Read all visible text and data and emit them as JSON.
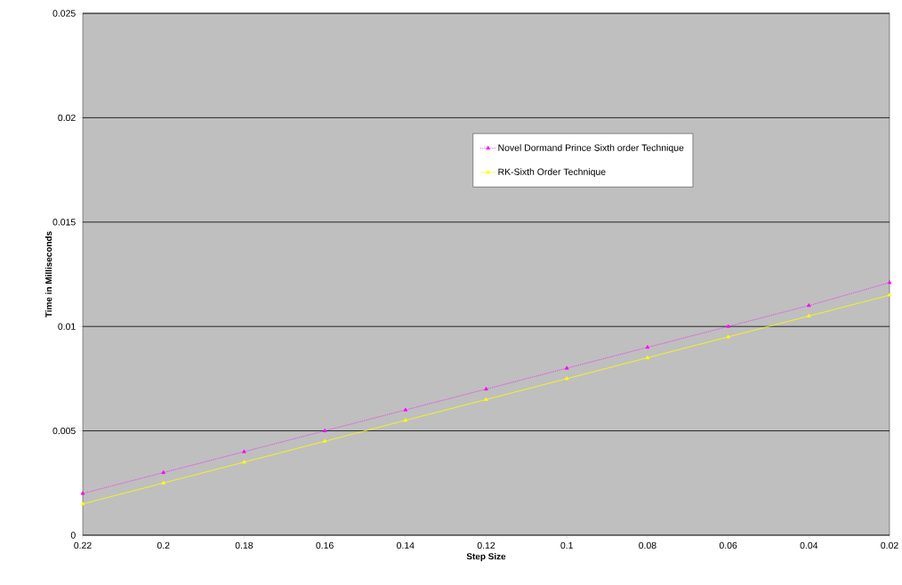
{
  "chart_data": {
    "type": "line",
    "xlabel": "Step Size",
    "ylabel": "Time in Milliseconds",
    "categories": [
      "0.22",
      "0.2",
      "0.18",
      "0.16",
      "0.14",
      "0.12",
      "0.1",
      "0.08",
      "0.06",
      "0.04",
      "0.02"
    ],
    "series": [
      {
        "name": "Novel Dormand Prince Sixth order Technique",
        "color": "#ff00ff",
        "line_style": "dotted",
        "values": [
          0.002,
          0.003,
          0.004,
          0.005,
          0.006,
          0.007,
          0.008,
          0.009,
          0.01,
          0.011,
          0.0121
        ]
      },
      {
        "name": "RK-Sixth Order Technique",
        "color": "#ffff00",
        "line_style": "solid",
        "values": [
          0.0015,
          0.0025,
          0.0035,
          0.0045,
          0.0055,
          0.0065,
          0.0075,
          0.0085,
          0.0095,
          0.0105,
          0.0115
        ]
      }
    ],
    "ylim": [
      0,
      0.025
    ],
    "yticks": [
      0,
      0.005,
      0.01,
      0.015,
      0.02,
      0.025
    ],
    "grid": "y",
    "legend": "top",
    "marker": "triangle"
  }
}
